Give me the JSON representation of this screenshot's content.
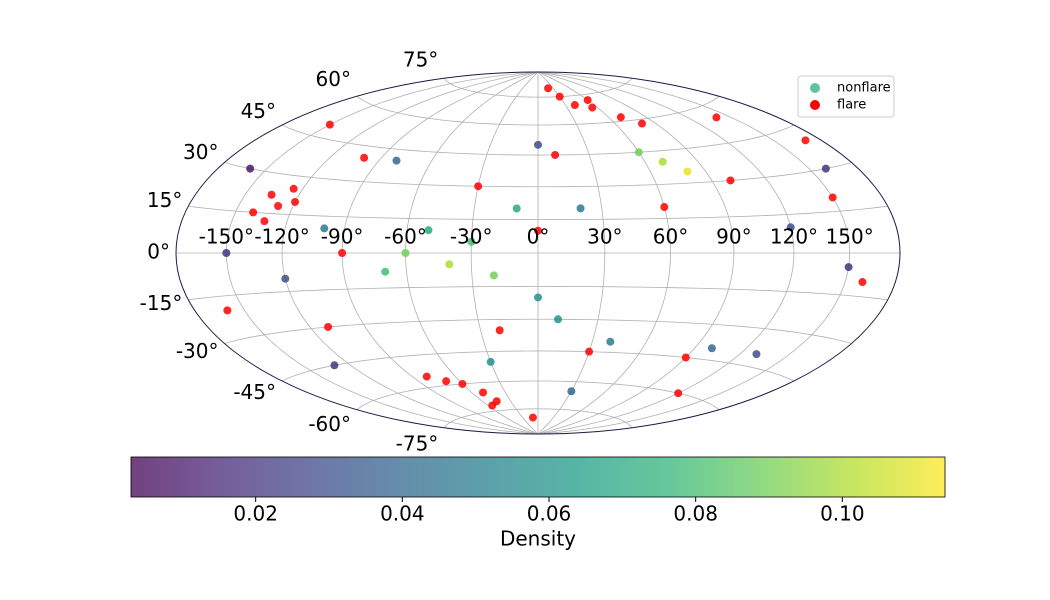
{
  "chart_data": {
    "type": "scatter",
    "projection": "hammer",
    "grid": true,
    "legend": "upper right",
    "xlim": [
      -180,
      180
    ],
    "ylim": [
      -90,
      90
    ],
    "xticks": [
      {
        "value": -150,
        "label": "-150°"
      },
      {
        "value": -120,
        "label": "-120°"
      },
      {
        "value": -90,
        "label": "-90°"
      },
      {
        "value": -60,
        "label": "-60°"
      },
      {
        "value": -30,
        "label": "-30°"
      },
      {
        "value": 0,
        "label": "0°"
      },
      {
        "value": 30,
        "label": "30°"
      },
      {
        "value": 60,
        "label": "60°"
      },
      {
        "value": 90,
        "label": "90°"
      },
      {
        "value": 120,
        "label": "120°"
      },
      {
        "value": 150,
        "label": "150°"
      }
    ],
    "yticks": [
      {
        "value": -75,
        "label": "-75°"
      },
      {
        "value": -60,
        "label": "-60°"
      },
      {
        "value": -45,
        "label": "-45°"
      },
      {
        "value": -30,
        "label": "-30°"
      },
      {
        "value": -15,
        "label": "-15°"
      },
      {
        "value": 0,
        "label": "0°"
      },
      {
        "value": 15,
        "label": "15°"
      },
      {
        "value": 30,
        "label": "30°"
      },
      {
        "value": 45,
        "label": "45°"
      },
      {
        "value": 60,
        "label": "60°"
      },
      {
        "value": 75,
        "label": "75°"
      }
    ],
    "series": [
      {
        "name": "nonflare",
        "color": "#5ec4a0",
        "x": [
          -60,
          -40,
          -30,
          -50,
          -20,
          -70,
          70,
          80,
          60,
          -100,
          -120,
          -150,
          150,
          120,
          100,
          40,
          0,
          20,
          -80,
          0,
          -160,
          160,
          -30,
          130,
          -130,
          10,
          -10,
          30
        ],
        "values": [
          0,
          -5,
          5,
          10,
          -10,
          -8,
          40,
          35,
          45,
          10,
          -10,
          0,
          -5,
          10,
          -40,
          -40,
          -20,
          20,
          40,
          50,
          30,
          30,
          -50,
          -40,
          -45,
          -30,
          20,
          -65
        ],
        "density": [
          0.09,
          0.1,
          0.08,
          0.07,
          0.09,
          0.08,
          0.1,
          0.11,
          0.09,
          0.05,
          0.03,
          0.02,
          0.02,
          0.03,
          0.04,
          0.05,
          0.06,
          0.05,
          0.04,
          0.03,
          0.01,
          0.02,
          0.06,
          0.03,
          0.02,
          0.06,
          0.07,
          0.04
        ]
      },
      {
        "name": "flare",
        "color": "#ff0000",
        "x": [
          -135,
          -128,
          -125,
          -140,
          -120,
          -132,
          40,
          55,
          70,
          60,
          80,
          30,
          -60,
          -50,
          -70,
          -45,
          -80,
          -55,
          -100,
          -30,
          10,
          100,
          150,
          160,
          -160,
          -110,
          -20,
          30,
          90,
          120,
          -150,
          140,
          0,
          -90,
          60,
          170,
          -10,
          20
        ],
        "values": [
          22,
          18,
          25,
          15,
          20,
          12,
          70,
          68,
          62,
          72,
          58,
          75,
          -60,
          -65,
          -58,
          -70,
          -55,
          -72,
          40,
          30,
          45,
          30,
          20,
          -10,
          -20,
          -30,
          -35,
          -45,
          -45,
          -60,
          50,
          55,
          10,
          0,
          20,
          40,
          -80,
          80
        ]
      }
    ],
    "colorbar": {
      "label": "Density",
      "cmap": "viridis",
      "lim": [
        0.003,
        0.114
      ],
      "ticks": [
        0.02,
        0.04,
        0.06,
        0.08,
        {
          "value": 0.1,
          "label": "0.10"
        }
      ]
    }
  }
}
